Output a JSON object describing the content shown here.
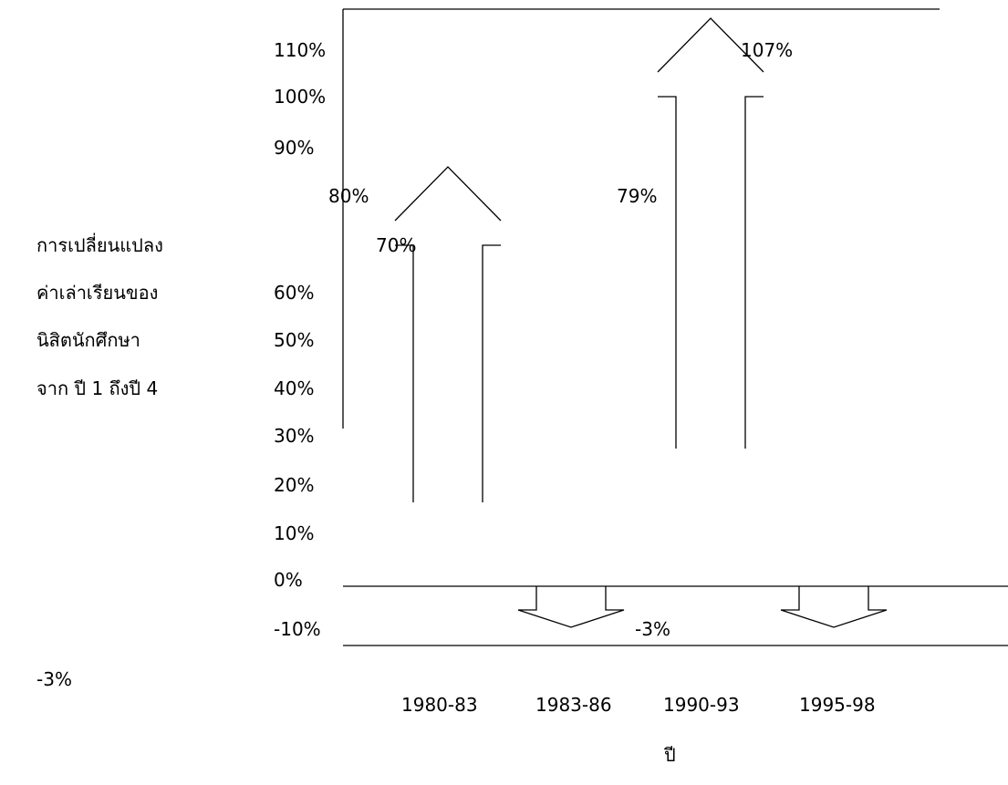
{
  "chart_data": {
    "type": "bar",
    "title": "",
    "ylabel_lines": [
      "การเปลี่ยนแปลง",
      "ค่าเล่าเรียนของ",
      "นิสิตนักศึกษา",
      "จาก ปี 1 ถึงปี 4"
    ],
    "xlabel": "ปี",
    "categories": [
      "1980-83",
      "1983-86",
      "1990-93",
      "1995-98"
    ],
    "values": [
      80,
      -3,
      107,
      -3
    ],
    "value_labels": [
      "80%",
      "-3%",
      "107%",
      "-3%"
    ],
    "y_ticks": [
      "110%",
      "100%",
      "90%",
      "70%",
      "60%",
      "50%",
      "40%",
      "30%",
      "20%",
      "10%",
      "0%",
      "-10%"
    ],
    "stray_labels": [
      "70%",
      "79%",
      "-3%"
    ],
    "ylim": [
      -10,
      110
    ],
    "grid": false,
    "legend": "none"
  }
}
